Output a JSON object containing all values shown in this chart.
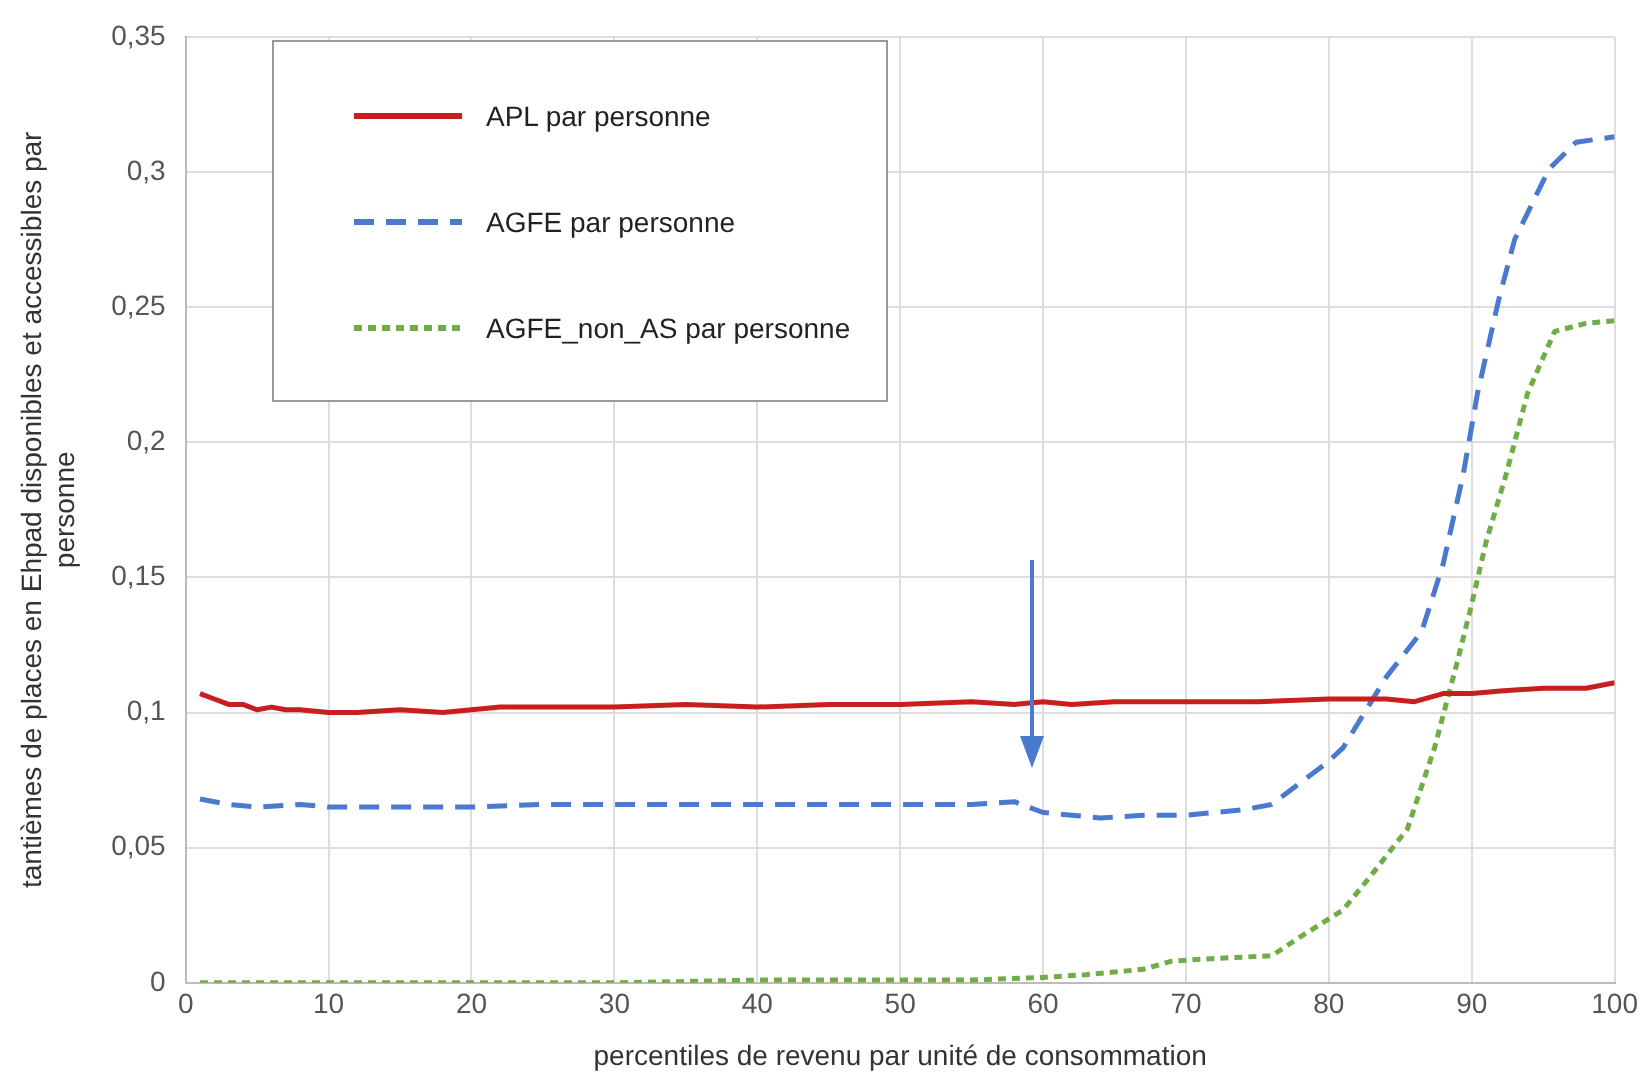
{
  "chart_data": {
    "type": "line",
    "xlabel": "percentiles de revenu par unité de consommation",
    "ylabel": "tantièmes de places en Ehpad disponibles et accessibles par personne",
    "xlim": [
      0,
      100
    ],
    "xticks": [
      0,
      10,
      20,
      30,
      40,
      50,
      60,
      70,
      80,
      90,
      100
    ],
    "ylim": [
      0,
      0.35
    ],
    "yticks": [
      0,
      {
        "value": 0.05,
        "label": "0,05"
      },
      {
        "value": 0.1,
        "label": "0,1"
      },
      {
        "value": 0.15,
        "label": "0,15"
      },
      {
        "value": 0.2,
        "label": "0,2"
      },
      {
        "value": 0.25,
        "label": "0,25"
      },
      {
        "value": 0.3,
        "label": "0,3"
      },
      {
        "value": 0.35,
        "label": "0,35"
      }
    ],
    "grid": true,
    "legend": "top left",
    "marker": "none",
    "series": [
      {
        "name": "APL par personne",
        "color": "#c81e1e",
        "line_style": "solid",
        "x": [
          1,
          2,
          3,
          4,
          5,
          6,
          7,
          8,
          10,
          12,
          15,
          18,
          20,
          22,
          25,
          30,
          35,
          40,
          45,
          50,
          55,
          58,
          60,
          62,
          65,
          70,
          75,
          80,
          84,
          86,
          88,
          90,
          92,
          95,
          98,
          100
        ],
        "values": [
          0.107,
          0.105,
          0.103,
          0.103,
          0.101,
          0.102,
          0.101,
          0.101,
          0.1,
          0.1,
          0.101,
          0.1,
          0.101,
          0.102,
          0.102,
          0.102,
          0.103,
          0.102,
          0.103,
          0.103,
          0.104,
          0.103,
          0.104,
          0.103,
          0.104,
          0.104,
          0.104,
          0.105,
          0.105,
          0.104,
          0.107,
          0.107,
          0.108,
          0.109,
          0.109,
          0.111
        ]
      },
      {
        "name": "AGFE par personne",
        "color": "#4a7ad0",
        "line_style": "dashed",
        "x": [
          1,
          3,
          5,
          8,
          10,
          15,
          20,
          25,
          30,
          35,
          40,
          45,
          50,
          55,
          58,
          60,
          62,
          64,
          67,
          70,
          74,
          76,
          78,
          80,
          81,
          84,
          86.5,
          88,
          89.4,
          90.4,
          91.9,
          93,
          95.4,
          97.3,
          100
        ],
        "values": [
          0.068,
          0.066,
          0.065,
          0.066,
          0.065,
          0.065,
          0.065,
          0.066,
          0.066,
          0.066,
          0.066,
          0.066,
          0.066,
          0.066,
          0.067,
          0.063,
          0.062,
          0.061,
          0.062,
          0.062,
          0.064,
          0.066,
          0.074,
          0.082,
          0.087,
          0.113,
          0.13,
          0.155,
          0.188,
          0.218,
          0.253,
          0.275,
          0.301,
          0.311,
          0.313
        ]
      },
      {
        "name": "AGFE_non_AS par personne",
        "color": "#70ad47",
        "line_style": "dotted",
        "x": [
          1,
          10,
          20,
          30,
          40,
          45,
          50,
          55,
          60,
          63,
          65,
          67,
          69,
          72,
          76,
          78,
          81,
          83,
          85.5,
          87.4,
          88.9,
          89.9,
          91,
          92.4,
          93.9,
          95.8,
          98,
          100
        ],
        "values": [
          0,
          0,
          0,
          0,
          0.001,
          0.001,
          0.001,
          0.001,
          0.002,
          0.003,
          0.004,
          0.005,
          0.008,
          0.009,
          0.01,
          0.017,
          0.027,
          0.04,
          0.057,
          0.087,
          0.117,
          0.138,
          0.163,
          0.188,
          0.218,
          0.241,
          0.244,
          0.245
        ]
      }
    ]
  }
}
